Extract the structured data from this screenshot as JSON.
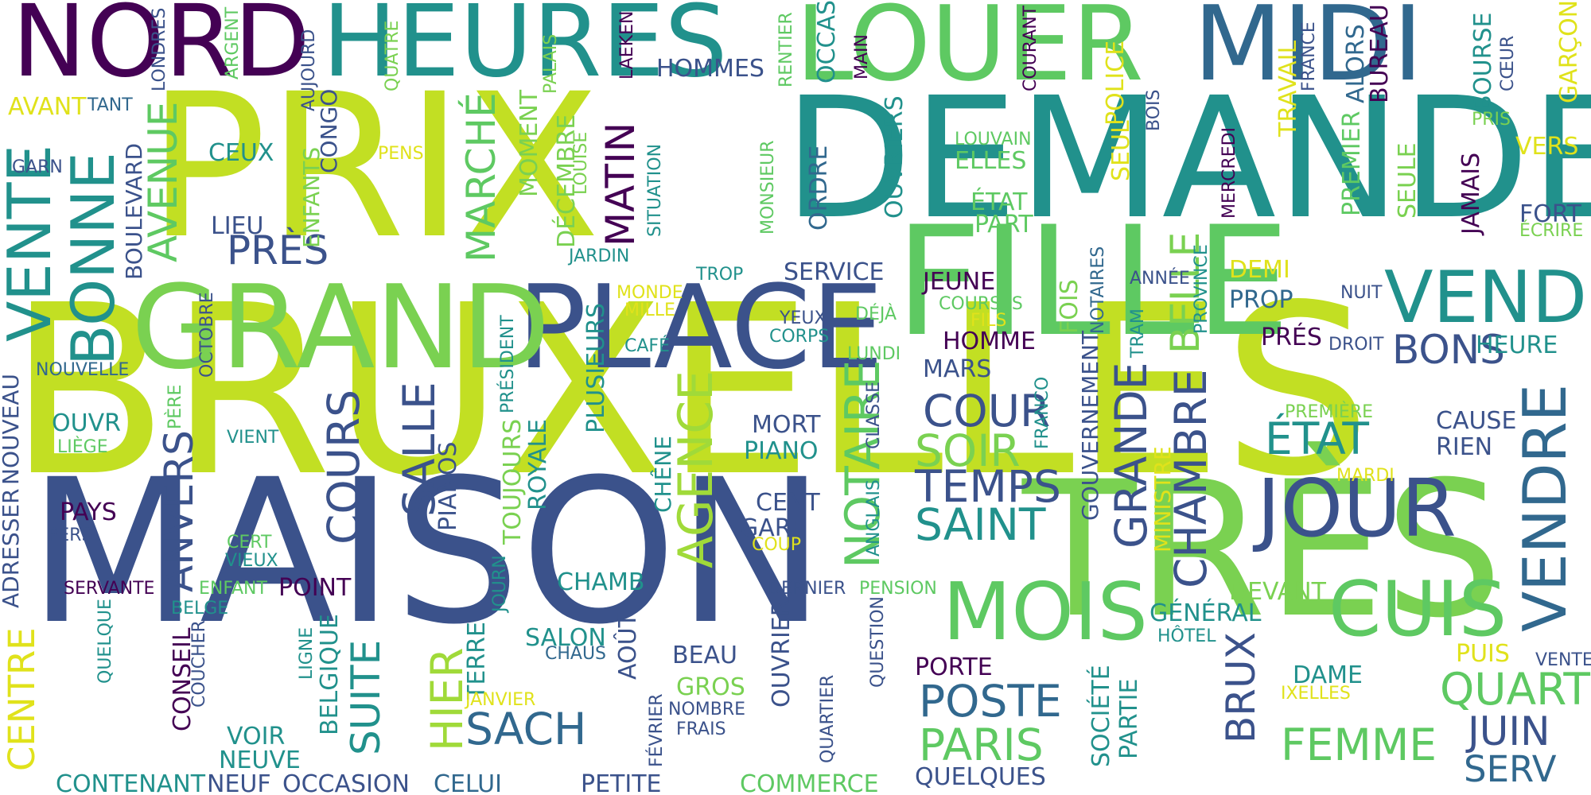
{
  "palette": {
    "lime": "#c2df23",
    "yellow": "#e0e21b",
    "green": "#5ec962",
    "teal": "#21918c",
    "blue": "#3b528b",
    "purple": "#440154"
  },
  "words": [
    {
      "text": "BRUXELLES",
      "color": "#c2df23"
    },
    {
      "text": "MAISON",
      "color": "#3b528b"
    },
    {
      "text": "PRIX",
      "color": "#c2df23"
    },
    {
      "text": "DEMANDE",
      "color": "#21918c"
    },
    {
      "text": "TRÈS",
      "color": "#7ad151"
    },
    {
      "text": "FILLE",
      "color": "#5ec962"
    },
    {
      "text": "PLACE",
      "color": "#3b528b"
    },
    {
      "text": "GRAND",
      "color": "#7ad151"
    },
    {
      "text": "NORD",
      "color": "#440154"
    },
    {
      "text": "HEURES",
      "color": "#21918c"
    },
    {
      "text": "LOUER",
      "color": "#5ec962"
    },
    {
      "text": "MIDI",
      "color": "#31688e"
    },
    {
      "text": "VENTE",
      "color": "#21918c"
    },
    {
      "text": "BONNE",
      "color": "#21918c"
    },
    {
      "text": "JOUR",
      "color": "#3b528b"
    },
    {
      "text": "MOIS",
      "color": "#5ec962"
    },
    {
      "text": "CUIS",
      "color": "#5ec962"
    },
    {
      "text": "VEND",
      "color": "#21918c"
    },
    {
      "text": "VENDRE",
      "color": "#31688e"
    },
    {
      "text": "NOTAIRE",
      "color": "#5ec962"
    },
    {
      "text": "AGENCE",
      "color": "#a0da39"
    },
    {
      "text": "CHAMBRE",
      "color": "#3b528b"
    },
    {
      "text": "GRANDE",
      "color": "#3b528b"
    },
    {
      "text": "BELLE",
      "color": "#7ad151"
    },
    {
      "text": "SALLE",
      "color": "#3b528b"
    },
    {
      "text": "COURS",
      "color": "#3b528b"
    },
    {
      "text": "COUR",
      "color": "#3b528b"
    },
    {
      "text": "SOIR",
      "color": "#7ad151"
    },
    {
      "text": "TEMPS",
      "color": "#3b528b"
    },
    {
      "text": "SAINT",
      "color": "#21918c"
    },
    {
      "text": "ÉTAT",
      "color": "#21918c"
    },
    {
      "text": "POSTE",
      "color": "#31688e"
    },
    {
      "text": "PARIS",
      "color": "#5ec962"
    },
    {
      "text": "FEMME",
      "color": "#5ec962"
    },
    {
      "text": "QUART",
      "color": "#5ec962"
    },
    {
      "text": "JUIN",
      "color": "#3b528b"
    },
    {
      "text": "SERV",
      "color": "#31688e"
    },
    {
      "text": "SACH",
      "color": "#31688e"
    },
    {
      "text": "SUITE",
      "color": "#21918c"
    },
    {
      "text": "HIER",
      "color": "#a0da39"
    },
    {
      "text": "BRUX",
      "color": "#3b528b"
    },
    {
      "text": "MARCHÉ",
      "color": "#5ec962"
    },
    {
      "text": "MATIN",
      "color": "#440154"
    },
    {
      "text": "AVENUE",
      "color": "#5ec962"
    },
    {
      "text": "PRÈS",
      "color": "#3b528b"
    },
    {
      "text": "ANVERS",
      "color": "#3b528b"
    },
    {
      "text": "BONS",
      "color": "#3b528b"
    },
    {
      "text": "HEURE",
      "color": "#21918c"
    },
    {
      "text": "PLUSIEURS",
      "color": "#21918c"
    },
    {
      "text": "OUVRIERS",
      "color": "#21918c"
    },
    {
      "text": "ORDRE",
      "color": "#31688e"
    },
    {
      "text": "SERVICE",
      "color": "#3b528b"
    },
    {
      "text": "JEUNE",
      "color": "#440154"
    },
    {
      "text": "HOMME",
      "color": "#440154"
    },
    {
      "text": "MARS",
      "color": "#3b528b"
    },
    {
      "text": "PRÉS",
      "color": "#440154"
    },
    {
      "text": "PROP",
      "color": "#31688e"
    },
    {
      "text": "CAUSE",
      "color": "#3b528b"
    },
    {
      "text": "RIEN",
      "color": "#3b528b"
    },
    {
      "text": "MORT",
      "color": "#3b528b"
    },
    {
      "text": "PIANO",
      "color": "#21918c"
    },
    {
      "text": "CENT",
      "color": "#3b528b"
    },
    {
      "text": "GARE",
      "color": "#3b528b"
    },
    {
      "text": "BEAU",
      "color": "#3b528b"
    },
    {
      "text": "GROS",
      "color": "#7ad151"
    },
    {
      "text": "NOMBRE",
      "color": "#3b528b"
    },
    {
      "text": "FRAIS",
      "color": "#3b528b"
    },
    {
      "text": "DAME",
      "color": "#21918c"
    },
    {
      "text": "GÉNÉRAL",
      "color": "#21918c"
    },
    {
      "text": "DEVANT",
      "color": "#7ad151"
    },
    {
      "text": "HÔTEL",
      "color": "#21918c"
    },
    {
      "text": "PUIS",
      "color": "#e0e21b"
    },
    {
      "text": "VENTES",
      "color": "#3b528b"
    },
    {
      "text": "IXELLES",
      "color": "#e0e21b"
    },
    {
      "text": "PORTE",
      "color": "#440154"
    },
    {
      "text": "QUELQUES",
      "color": "#3b528b"
    },
    {
      "text": "COMMERCE",
      "color": "#5ec962"
    },
    {
      "text": "PETITE",
      "color": "#3b528b"
    },
    {
      "text": "CELUI",
      "color": "#31688e"
    },
    {
      "text": "OCCASION",
      "color": "#3b528b"
    },
    {
      "text": "NEUF",
      "color": "#3b528b"
    },
    {
      "text": "CONTENANT",
      "color": "#21918c"
    },
    {
      "text": "NEUVE",
      "color": "#21918c"
    },
    {
      "text": "VOIR",
      "color": "#21918c"
    },
    {
      "text": "SALON",
      "color": "#21918c"
    },
    {
      "text": "CHAUS",
      "color": "#31688e"
    },
    {
      "text": "CHAMB",
      "color": "#21918c"
    },
    {
      "text": "POINT",
      "color": "#440154"
    },
    {
      "text": "SERVANTE",
      "color": "#440154"
    },
    {
      "text": "ENFANT",
      "color": "#5ec962"
    },
    {
      "text": "DERNIER",
      "color": "#3b528b"
    },
    {
      "text": "PENSION",
      "color": "#5ec962"
    },
    {
      "text": "CENTRE",
      "color": "#e0e21b"
    },
    {
      "text": "ADRESSER",
      "color": "#3b528b"
    },
    {
      "text": "NOUVEAU",
      "color": "#3b528b"
    },
    {
      "text": "NOUVELLE",
      "color": "#31688e"
    },
    {
      "text": "OUVR",
      "color": "#21918c"
    },
    {
      "text": "LIÈGE",
      "color": "#5ec962"
    },
    {
      "text": "PAYS",
      "color": "#440154"
    },
    {
      "text": "PERS",
      "color": "#3b528b"
    },
    {
      "text": "CERT",
      "color": "#5ec962"
    },
    {
      "text": "VIEUX",
      "color": "#21918c"
    },
    {
      "text": "VIENT",
      "color": "#21918c"
    },
    {
      "text": "PÈRE",
      "color": "#5ec962"
    },
    {
      "text": "HOMMES",
      "color": "#3b528b"
    },
    {
      "text": "CEUX",
      "color": "#21918c"
    },
    {
      "text": "LIEU",
      "color": "#3b528b"
    },
    {
      "text": "PENS",
      "color": "#e0e21b"
    },
    {
      "text": "GARN",
      "color": "#3b528b"
    },
    {
      "text": "AVANT",
      "color": "#e0e21b"
    },
    {
      "text": "TANT",
      "color": "#31688e"
    },
    {
      "text": "ELLES",
      "color": "#5ec962"
    },
    {
      "text": "LOUVAIN",
      "color": "#5ec962"
    },
    {
      "text": "ÉTAT",
      "color": "#5ec962"
    },
    {
      "text": "PART",
      "color": "#5ec962"
    },
    {
      "text": "TROP",
      "color": "#21918c"
    },
    {
      "text": "MONDE",
      "color": "#e0e21b"
    },
    {
      "text": "MILLE",
      "color": "#e0e21b"
    },
    {
      "text": "CAFÉ",
      "color": "#21918c"
    },
    {
      "text": "YEUX",
      "color": "#3b528b"
    },
    {
      "text": "CORPS",
      "color": "#21918c"
    },
    {
      "text": "DÉJÀ",
      "color": "#5ec962"
    },
    {
      "text": "LUNDI",
      "color": "#5ec962"
    },
    {
      "text": "COURSES",
      "color": "#5ec962"
    },
    {
      "text": "FILS",
      "color": "#e0e21b"
    },
    {
      "text": "ANNÉE",
      "color": "#3b528b"
    },
    {
      "text": "DEMI",
      "color": "#e0e21b"
    },
    {
      "text": "NUIT",
      "color": "#3b528b"
    },
    {
      "text": "DROIT",
      "color": "#3b528b"
    },
    {
      "text": "PREMIÈRE",
      "color": "#7ad151"
    },
    {
      "text": "MARDI",
      "color": "#e0e21b"
    },
    {
      "text": "VERS",
      "color": "#e0e21b"
    },
    {
      "text": "FORT",
      "color": "#3b528b"
    },
    {
      "text": "ÉCRIRE",
      "color": "#7ad151"
    },
    {
      "text": "PRIS",
      "color": "#7ad151"
    },
    {
      "text": "COUP",
      "color": "#e0e21b"
    },
    {
      "text": "JARDIN",
      "color": "#21918c"
    },
    {
      "text": "BOULEVARD",
      "color": "#3b528b"
    },
    {
      "text": "ENFANTS",
      "color": "#7ad151"
    },
    {
      "text": "CONGO",
      "color": "#3b528b"
    },
    {
      "text": "MOMENT",
      "color": "#7ad151"
    },
    {
      "text": "DÉCEMBRE",
      "color": "#7ad151"
    },
    {
      "text": "LOUISE",
      "color": "#7ad151"
    },
    {
      "text": "SITUATION",
      "color": "#21918c"
    },
    {
      "text": "MONSIEUR",
      "color": "#5ec962"
    },
    {
      "text": "OCTOBRE",
      "color": "#3b528b"
    },
    {
      "text": "PRÉSIDENT",
      "color": "#21918c"
    },
    {
      "text": "TOUJOURS",
      "color": "#7ad151"
    },
    {
      "text": "ROYALE",
      "color": "#21918c"
    },
    {
      "text": "PIANOS",
      "color": "#3b528b"
    },
    {
      "text": "CHÊNE",
      "color": "#21918c"
    },
    {
      "text": "CLASSE",
      "color": "#3b528b"
    },
    {
      "text": "ANGLAIS",
      "color": "#21918c"
    },
    {
      "text": "FRANCO",
      "color": "#21918c"
    },
    {
      "text": "GOUVERNEMENT",
      "color": "#3b528b"
    },
    {
      "text": "MINISTRE",
      "color": "#e0e21b"
    },
    {
      "text": "FOIS",
      "color": "#7ad151"
    },
    {
      "text": "NOTAIRES",
      "color": "#31688e"
    },
    {
      "text": "TRAM",
      "color": "#21918c"
    },
    {
      "text": "PROVINCE",
      "color": "#21918c"
    },
    {
      "text": "SEUL",
      "color": "#e0e21b"
    },
    {
      "text": "MERCREDI",
      "color": "#440154"
    },
    {
      "text": "PREMIER",
      "color": "#5ec962"
    },
    {
      "text": "SEULE",
      "color": "#7ad151"
    },
    {
      "text": "JAMAIS",
      "color": "#440154"
    },
    {
      "text": "TRAVAIL",
      "color": "#e0e21b"
    },
    {
      "text": "FRANCE",
      "color": "#3b528b"
    },
    {
      "text": "ALORS",
      "color": "#31688e"
    },
    {
      "text": "BUREAU",
      "color": "#440154"
    },
    {
      "text": "BOURSE",
      "color": "#21918c"
    },
    {
      "text": "CŒUR",
      "color": "#3b528b"
    },
    {
      "text": "GARÇON",
      "color": "#e0e21b"
    },
    {
      "text": "POLICE",
      "color": "#e0e21b"
    },
    {
      "text": "BOIS",
      "color": "#3b528b"
    },
    {
      "text": "COURANT",
      "color": "#440154"
    },
    {
      "text": "MAIN",
      "color": "#440154"
    },
    {
      "text": "RENTIER",
      "color": "#5ec962"
    },
    {
      "text": "OCCAS",
      "color": "#21918c"
    },
    {
      "text": "LAEKEN",
      "color": "#440154"
    },
    {
      "text": "PALAIS",
      "color": "#7ad151"
    },
    {
      "text": "QUATRE",
      "color": "#7ad151"
    },
    {
      "text": "AUJOURD",
      "color": "#3b528b"
    },
    {
      "text": "ARGENT",
      "color": "#5ec962"
    },
    {
      "text": "LONDRES",
      "color": "#3b528b"
    },
    {
      "text": "QUELQUE",
      "color": "#21918c"
    },
    {
      "text": "CONSEIL",
      "color": "#440154"
    },
    {
      "text": "COUCHER",
      "color": "#3b528b"
    },
    {
      "text": "BELGE",
      "color": "#21918c"
    },
    {
      "text": "BELGIQUE",
      "color": "#21918c"
    },
    {
      "text": "LIGNE",
      "color": "#21918c"
    },
    {
      "text": "TERRE",
      "color": "#21918c"
    },
    {
      "text": "JANVIER",
      "color": "#e0e21b"
    },
    {
      "text": "JOURN",
      "color": "#21918c"
    },
    {
      "text": "AOÛT",
      "color": "#3b528b"
    },
    {
      "text": "FÉVRIER",
      "color": "#3b528b"
    },
    {
      "text": "OUVRIER",
      "color": "#3b528b"
    },
    {
      "text": "QUARTIER",
      "color": "#3b528b"
    },
    {
      "text": "QUESTION",
      "color": "#3b528b"
    },
    {
      "text": "SOCIÉTÉ",
      "color": "#21918c"
    },
    {
      "text": "PARTIE",
      "color": "#21918c"
    }
  ]
}
